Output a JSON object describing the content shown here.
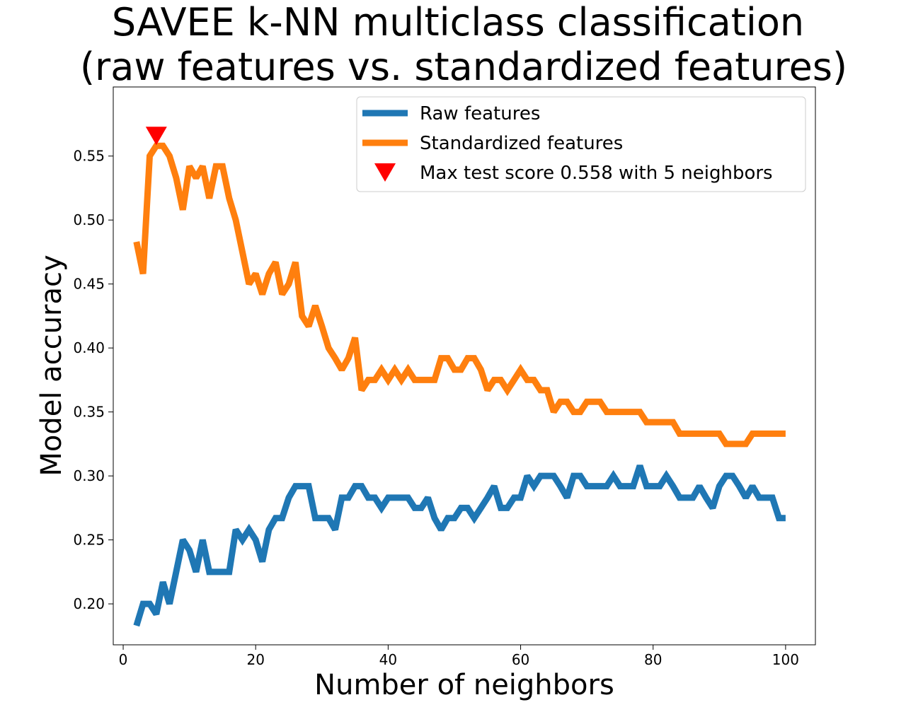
{
  "chart_data": {
    "type": "line",
    "title_lines": [
      "SAVEE k-NN multiclass classification",
      "(raw features vs. standardized features)"
    ],
    "xlabel": "Number of neighbors",
    "ylabel": "Model accuracy",
    "xlim": [
      -1.5,
      104.5
    ],
    "ylim": [
      0.168,
      0.604
    ],
    "xticks": [
      0,
      20,
      40,
      60,
      80,
      100
    ],
    "yticks": [
      0.2,
      0.25,
      0.3,
      0.35,
      0.4,
      0.45,
      0.5,
      0.55
    ],
    "xtick_labels": [
      "0",
      "20",
      "40",
      "60",
      "80",
      "100"
    ],
    "ytick_labels": [
      "0.20",
      "0.25",
      "0.30",
      "0.35",
      "0.40",
      "0.45",
      "0.50",
      "0.55"
    ],
    "x": [
      2,
      3,
      4,
      5,
      6,
      7,
      8,
      9,
      10,
      11,
      12,
      13,
      14,
      15,
      16,
      17,
      18,
      19,
      20,
      21,
      22,
      23,
      24,
      25,
      26,
      27,
      28,
      29,
      30,
      31,
      32,
      33,
      34,
      35,
      36,
      37,
      38,
      39,
      40,
      41,
      42,
      43,
      44,
      45,
      46,
      47,
      48,
      49,
      50,
      51,
      52,
      53,
      54,
      55,
      56,
      57,
      58,
      59,
      60,
      61,
      62,
      63,
      64,
      65,
      66,
      67,
      68,
      69,
      70,
      71,
      72,
      73,
      74,
      75,
      76,
      77,
      78,
      79,
      80,
      81,
      82,
      83,
      84,
      85,
      86,
      87,
      88,
      89,
      90,
      91,
      92,
      93,
      94,
      95,
      96,
      97,
      98,
      99,
      100
    ],
    "series": [
      {
        "name": "Raw features",
        "color": "#1f77b4",
        "values": [
          0.183,
          0.2,
          0.2,
          0.192,
          0.217,
          0.2,
          0.225,
          0.25,
          0.242,
          0.225,
          0.25,
          0.225,
          0.225,
          0.225,
          0.225,
          0.258,
          0.25,
          0.258,
          0.25,
          0.233,
          0.258,
          0.267,
          0.267,
          0.283,
          0.292,
          0.292,
          0.292,
          0.267,
          0.267,
          0.267,
          0.258,
          0.283,
          0.283,
          0.292,
          0.292,
          0.283,
          0.283,
          0.275,
          0.283,
          0.283,
          0.283,
          0.283,
          0.275,
          0.275,
          0.283,
          0.267,
          0.258,
          0.267,
          0.267,
          0.275,
          0.275,
          0.267,
          0.275,
          0.283,
          0.292,
          0.275,
          0.275,
          0.283,
          0.283,
          0.3,
          0.292,
          0.3,
          0.3,
          0.3,
          0.292,
          0.283,
          0.3,
          0.3,
          0.292,
          0.292,
          0.292,
          0.292,
          0.3,
          0.292,
          0.292,
          0.292,
          0.308,
          0.292,
          0.292,
          0.292,
          0.3,
          0.292,
          0.283,
          0.283,
          0.283,
          0.292,
          0.283,
          0.275,
          0.292,
          0.3,
          0.3,
          0.292,
          0.283,
          0.292,
          0.283,
          0.283,
          0.283,
          0.267,
          0.267
        ]
      },
      {
        "name": "Standardized features",
        "color": "#ff7f0e",
        "values": [
          0.483,
          0.458,
          0.55,
          0.558,
          0.558,
          0.55,
          0.533,
          0.508,
          0.542,
          0.533,
          0.542,
          0.517,
          0.542,
          0.542,
          0.517,
          0.5,
          0.475,
          0.45,
          0.458,
          0.442,
          0.458,
          0.467,
          0.442,
          0.45,
          0.467,
          0.425,
          0.417,
          0.433,
          0.417,
          0.4,
          0.392,
          0.383,
          0.392,
          0.408,
          0.367,
          0.375,
          0.375,
          0.383,
          0.375,
          0.383,
          0.375,
          0.383,
          0.375,
          0.375,
          0.375,
          0.375,
          0.392,
          0.392,
          0.383,
          0.383,
          0.392,
          0.392,
          0.383,
          0.367,
          0.375,
          0.375,
          0.367,
          0.375,
          0.383,
          0.375,
          0.375,
          0.367,
          0.367,
          0.35,
          0.358,
          0.358,
          0.35,
          0.35,
          0.358,
          0.358,
          0.358,
          0.35,
          0.35,
          0.35,
          0.35,
          0.35,
          0.35,
          0.342,
          0.342,
          0.342,
          0.342,
          0.342,
          0.333,
          0.333,
          0.333,
          0.333,
          0.333,
          0.333,
          0.333,
          0.325,
          0.325,
          0.325,
          0.325,
          0.333,
          0.333,
          0.333,
          0.333,
          0.333,
          0.333
        ]
      }
    ],
    "marker": {
      "label": "Max test score 0.558 with 5 neighbors",
      "x": 5,
      "y": 0.558,
      "color": "#ff0000",
      "shape": "triangle-down"
    },
    "legend_position": "top-right",
    "grid": false
  }
}
